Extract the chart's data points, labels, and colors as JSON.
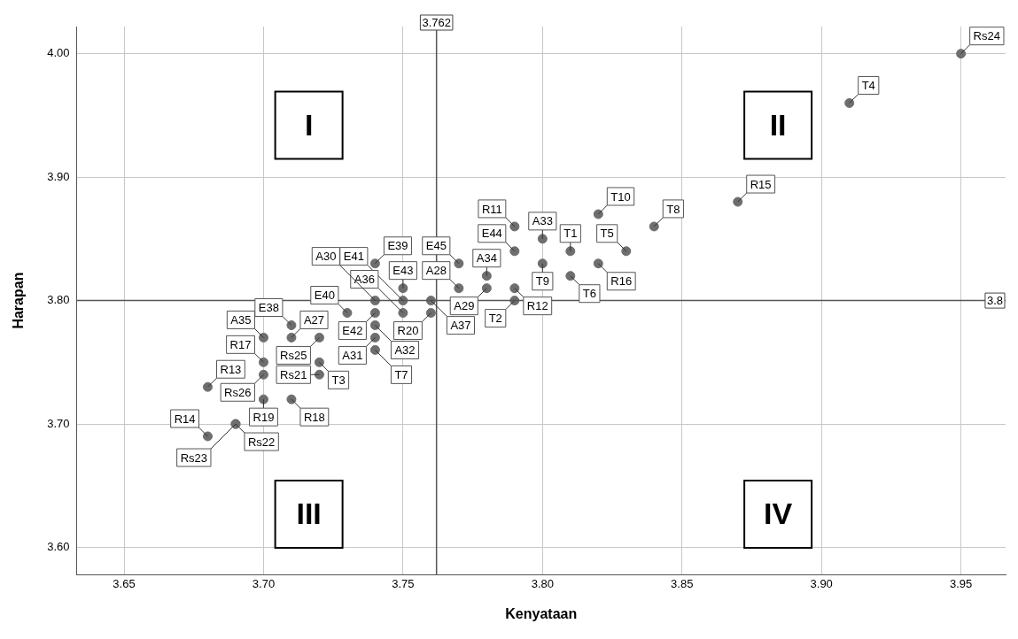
{
  "chart_data": {
    "type": "scatter",
    "xlabel": "Kenyataan",
    "ylabel": "Harapan",
    "xlim": [
      3.633,
      3.966
    ],
    "ylim": [
      3.578,
      4.022
    ],
    "xticks": [
      3.65,
      {
        "value": 3.7,
        "label": "3.70"
      },
      3.75,
      {
        "value": 3.8,
        "label": "3.80"
      },
      3.85,
      {
        "value": 3.9,
        "label": "3.90"
      },
      3.95
    ],
    "yticks": [
      {
        "value": 3.6,
        "label": "3.60"
      },
      {
        "value": 3.7,
        "label": "3.70"
      },
      {
        "value": 3.8,
        "label": "3.80"
      },
      {
        "value": 3.9,
        "label": "3.90"
      },
      {
        "value": 4.0,
        "label": "4.00"
      }
    ],
    "grid": true,
    "marker": "circle",
    "ref_lines": [
      {
        "axis": "x",
        "value": 3.762,
        "label": "3.762",
        "color": "#555555"
      },
      {
        "axis": "y",
        "value": 3.8,
        "label": "3.8",
        "color": "#555555"
      }
    ],
    "annotations": [
      "I",
      "II",
      "III",
      "IV"
    ],
    "series": [
      {
        "color": "#6e6e6e",
        "x": [
          3.95,
          3.91,
          3.87,
          3.84,
          3.83,
          3.82,
          3.82,
          3.81,
          3.81,
          3.8,
          3.8,
          3.79,
          3.79,
          3.79,
          3.79,
          3.78,
          3.78,
          3.77,
          3.77,
          3.76,
          3.76,
          3.75,
          3.75,
          3.75,
          3.74,
          3.74,
          3.74,
          3.74,
          3.74,
          3.74,
          3.73,
          3.72,
          3.72,
          3.72,
          3.71,
          3.71,
          3.71,
          3.7,
          3.7,
          3.7,
          3.7,
          3.69,
          3.69,
          3.68,
          3.68
        ],
        "values": [
          4.0,
          3.96,
          3.88,
          3.86,
          3.84,
          3.87,
          3.83,
          3.84,
          3.82,
          3.85,
          3.83,
          3.86,
          3.84,
          3.81,
          3.8,
          3.82,
          3.81,
          3.83,
          3.81,
          3.8,
          3.79,
          3.81,
          3.8,
          3.79,
          3.83,
          3.8,
          3.79,
          3.78,
          3.77,
          3.76,
          3.79,
          3.77,
          3.75,
          3.74,
          3.78,
          3.77,
          3.72,
          3.77,
          3.75,
          3.74,
          3.72,
          3.7,
          3.7,
          3.73,
          3.69
        ],
        "value_labels": [
          "Rs24",
          "T4",
          "R15",
          "T8",
          "T5",
          "T10",
          "R16",
          "T1",
          "T6",
          "A33",
          "T9",
          "R11",
          "E44",
          "R12",
          "T2",
          "A34",
          "A29",
          "E45",
          "A28",
          "A37",
          "R20",
          "E43",
          "E41",
          "A36",
          "E39",
          "A30",
          "E42",
          "A32",
          "A31",
          "T7",
          "E40",
          "Rs25",
          "T3",
          "Rs21",
          "E38",
          "A27",
          "R18",
          "A35",
          "R17",
          "Rs26",
          "R19",
          "Rs22",
          "Rs23",
          "R13",
          "R14"
        ]
      }
    ]
  }
}
